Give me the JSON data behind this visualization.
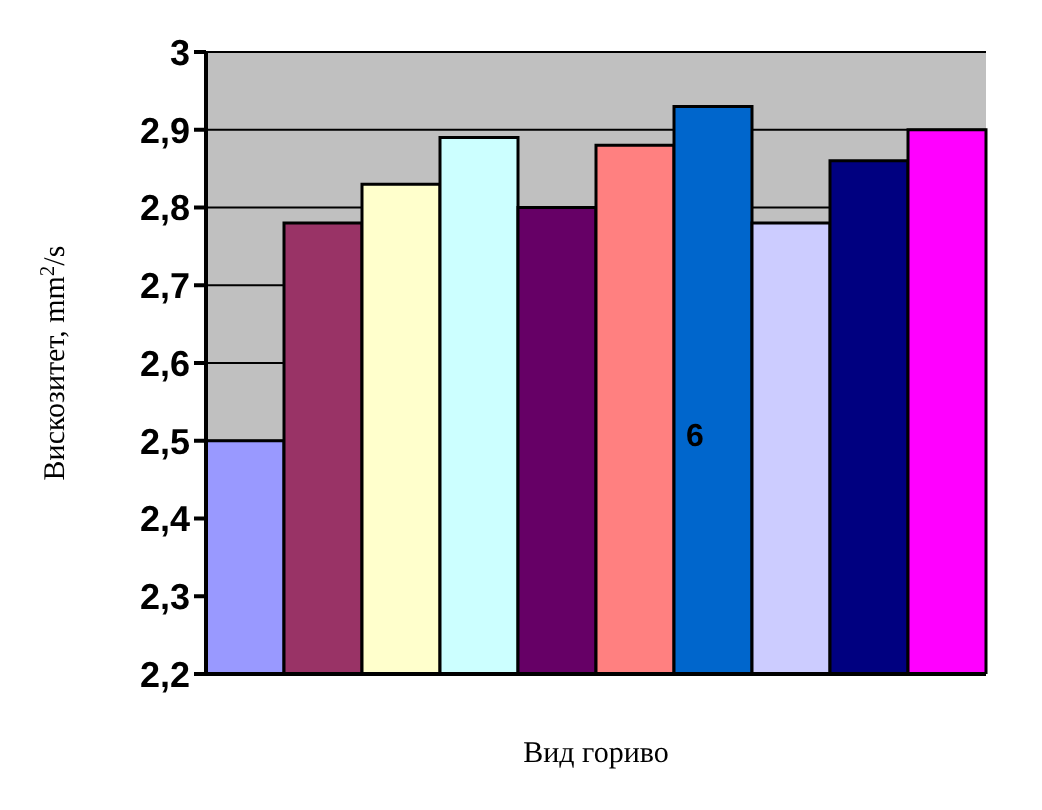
{
  "chart_data": {
    "type": "bar",
    "xlabel": "Вид гориво",
    "ylabel": "Вискозитет, mm$^{2}$/s",
    "categories": [
      null,
      null,
      null,
      null,
      null,
      null,
      null,
      null,
      null,
      null
    ],
    "values": [
      2.5,
      2.78,
      2.83,
      2.89,
      2.8,
      2.88,
      2.93,
      2.78,
      2.86,
      2.9
    ],
    "colors": [
      "#9999ff",
      "#993366",
      "#ffffcc",
      "#ccffff",
      "#660066",
      "#ff8080",
      "#0066cc",
      "#ccccff",
      "#000080",
      "#ff00ff"
    ],
    "ylim": [
      2.2,
      3
    ],
    "yticks": [
      {
        "value": 2.2,
        "label": "2,2"
      },
      {
        "value": 2.3,
        "label": "2,3"
      },
      {
        "value": 2.4,
        "label": "2,4"
      },
      {
        "value": 2.5,
        "label": "2,5"
      },
      {
        "value": 2.6,
        "label": "2,6"
      },
      {
        "value": 2.7,
        "label": "2,7"
      },
      {
        "value": 2.8,
        "label": "2,8"
      },
      {
        "value": 2.9,
        "label": "2,9"
      },
      3
    ],
    "grid": "y",
    "annotations": [
      "6"
    ]
  }
}
